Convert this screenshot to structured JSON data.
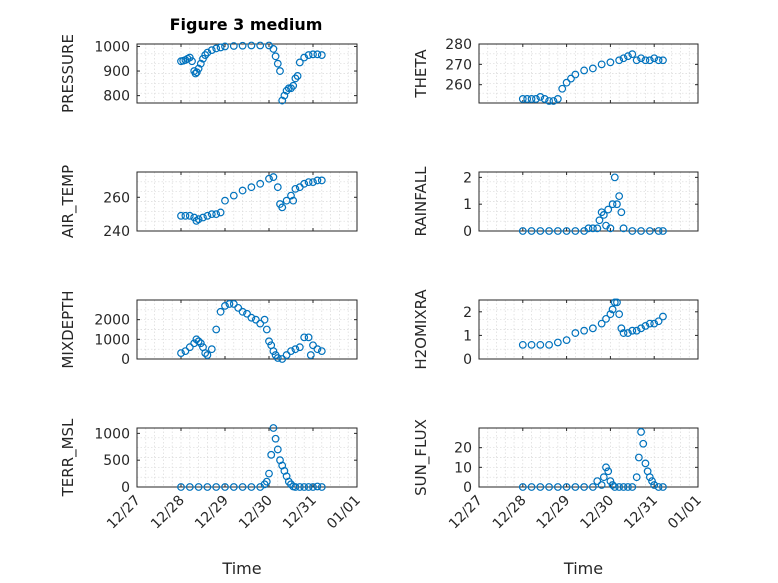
{
  "figure": {
    "title": "Figure 3 medium"
  },
  "chart_data": [
    {
      "type": "scatter",
      "title": "Figure 3 medium",
      "ylabel": "PRESSURE",
      "xlabel": "",
      "xlim": [
        0,
        5
      ],
      "ylim": [
        770,
        1010
      ],
      "grid": true,
      "yticks": [
        800,
        900,
        1000
      ],
      "ytick_labels": [
        "800",
        "900",
        "1000"
      ],
      "xtick_labels": [],
      "series": [
        {
          "x": [
            1.0,
            1.05,
            1.1,
            1.15,
            1.2,
            1.25,
            1.3,
            1.33,
            1.36,
            1.4,
            1.45,
            1.5,
            1.55,
            1.6,
            1.7,
            1.8,
            1.9,
            2.0,
            2.2,
            2.4,
            2.6,
            2.8,
            3.0,
            3.1,
            3.15,
            3.2,
            3.25,
            3.3,
            3.35,
            3.4,
            3.45,
            3.5,
            3.55,
            3.6,
            3.65,
            3.7,
            3.8,
            3.9,
            4.0,
            4.1,
            4.2
          ],
          "y": [
            940,
            942,
            945,
            950,
            955,
            940,
            900,
            890,
            895,
            910,
            930,
            950,
            965,
            975,
            985,
            992,
            996,
            1000,
            1002,
            1003,
            1004,
            1004,
            1004,
            990,
            960,
            930,
            900,
            780,
            800,
            820,
            830,
            830,
            840,
            870,
            880,
            935,
            955,
            965,
            968,
            968,
            965
          ]
        }
      ]
    },
    {
      "type": "scatter",
      "ylabel": "THETA",
      "xlabel": "",
      "xlim": [
        0,
        5
      ],
      "ylim": [
        251,
        280
      ],
      "grid": true,
      "yticks": [
        260,
        270,
        280
      ],
      "ytick_labels": [
        "260",
        "270",
        "280"
      ],
      "xtick_labels": [],
      "series": [
        {
          "x": [
            1.0,
            1.1,
            1.2,
            1.3,
            1.4,
            1.5,
            1.6,
            1.7,
            1.8,
            1.9,
            2.0,
            2.1,
            2.2,
            2.4,
            2.6,
            2.8,
            3.0,
            3.2,
            3.3,
            3.4,
            3.5,
            3.6,
            3.7,
            3.8,
            3.9,
            4.0,
            4.1,
            4.2
          ],
          "y": [
            253,
            253,
            253,
            253,
            254,
            253,
            252,
            252,
            253,
            258,
            261,
            263,
            265,
            267,
            268,
            270,
            271,
            272,
            273,
            274,
            275,
            272,
            273,
            272,
            272,
            273,
            272,
            272
          ]
        }
      ]
    },
    {
      "type": "scatter",
      "ylabel": "AIR_TEMP",
      "xlabel": "",
      "xlim": [
        0,
        5
      ],
      "ylim": [
        240,
        275
      ],
      "grid": true,
      "yticks": [
        240,
        260
      ],
      "ytick_labels": [
        "240",
        "260"
      ],
      "xtick_labels": [],
      "series": [
        {
          "x": [
            1.0,
            1.1,
            1.2,
            1.3,
            1.35,
            1.4,
            1.5,
            1.6,
            1.7,
            1.8,
            1.9,
            2.0,
            2.2,
            2.4,
            2.6,
            2.8,
            3.0,
            3.1,
            3.2,
            3.25,
            3.3,
            3.4,
            3.5,
            3.55,
            3.6,
            3.7,
            3.8,
            3.9,
            4.0,
            4.1,
            4.2
          ],
          "y": [
            249,
            249,
            249,
            248,
            246,
            247,
            248,
            249,
            250,
            250,
            251,
            258,
            261,
            264,
            266,
            268,
            271,
            272,
            266,
            256,
            254,
            258,
            261,
            258,
            265,
            266,
            268,
            269,
            269,
            270,
            270
          ]
        }
      ]
    },
    {
      "type": "scatter",
      "ylabel": "RAINFALL",
      "xlabel": "",
      "xlim": [
        0,
        5
      ],
      "ylim": [
        0,
        2.2
      ],
      "grid": true,
      "yticks": [
        0,
        1,
        2
      ],
      "ytick_labels": [
        "0",
        "1",
        "2"
      ],
      "xtick_labels": [],
      "series": [
        {
          "x": [
            1.0,
            1.2,
            1.4,
            1.6,
            1.8,
            2.0,
            2.2,
            2.4,
            2.5,
            2.6,
            2.7,
            2.75,
            2.8,
            2.85,
            2.9,
            2.95,
            3.0,
            3.05,
            3.1,
            3.15,
            3.2,
            3.25,
            3.3,
            3.5,
            3.7,
            3.9,
            4.1,
            4.2
          ],
          "y": [
            0,
            0,
            0,
            0,
            0,
            0,
            0,
            0,
            0.1,
            0.1,
            0.1,
            0.4,
            0.7,
            0.6,
            0.2,
            0.8,
            0.1,
            1.0,
            2.0,
            1.0,
            1.3,
            0.7,
            0.1,
            0,
            0,
            0,
            0,
            0
          ]
        }
      ]
    },
    {
      "type": "scatter",
      "ylabel": "MIXDEPTH",
      "xlabel": "",
      "xlim": [
        0,
        5
      ],
      "ylim": [
        0,
        3000
      ],
      "grid": true,
      "yticks": [
        0,
        1000,
        2000
      ],
      "ytick_labels": [
        "0",
        "1000",
        "2000"
      ],
      "xtick_labels": [],
      "series": [
        {
          "x": [
            1.0,
            1.1,
            1.2,
            1.3,
            1.35,
            1.4,
            1.45,
            1.5,
            1.55,
            1.6,
            1.7,
            1.8,
            1.9,
            2.0,
            2.1,
            2.2,
            2.3,
            2.4,
            2.5,
            2.6,
            2.7,
            2.8,
            2.9,
            2.95,
            3.0,
            3.05,
            3.1,
            3.15,
            3.2,
            3.3,
            3.4,
            3.5,
            3.6,
            3.7,
            3.8,
            3.9,
            3.95,
            4.0,
            4.1,
            4.2
          ],
          "y": [
            300,
            400,
            600,
            800,
            1000,
            900,
            800,
            600,
            300,
            200,
            500,
            1500,
            2400,
            2700,
            2800,
            2800,
            2600,
            2400,
            2300,
            2100,
            2000,
            1800,
            2000,
            1500,
            900,
            700,
            400,
            200,
            50,
            0,
            200,
            400,
            500,
            600,
            1100,
            1100,
            200,
            700,
            500,
            400
          ]
        }
      ]
    },
    {
      "type": "scatter",
      "ylabel": "H2OMIXRA",
      "xlabel": "",
      "xlim": [
        0,
        5
      ],
      "ylim": [
        0,
        2.5
      ],
      "grid": true,
      "yticks": [
        0,
        1,
        2
      ],
      "ytick_labels": [
        "0",
        "1",
        "2"
      ],
      "xtick_labels": [],
      "series": [
        {
          "x": [
            1.0,
            1.2,
            1.4,
            1.6,
            1.8,
            2.0,
            2.2,
            2.4,
            2.6,
            2.8,
            2.9,
            3.0,
            3.05,
            3.1,
            3.15,
            3.2,
            3.25,
            3.3,
            3.4,
            3.5,
            3.6,
            3.7,
            3.8,
            3.9,
            4.0,
            4.1,
            4.2
          ],
          "y": [
            0.6,
            0.6,
            0.6,
            0.6,
            0.7,
            0.8,
            1.1,
            1.2,
            1.3,
            1.5,
            1.7,
            1.9,
            2.1,
            2.4,
            2.4,
            1.9,
            1.3,
            1.1,
            1.1,
            1.2,
            1.2,
            1.3,
            1.4,
            1.5,
            1.5,
            1.6,
            1.8
          ]
        }
      ]
    },
    {
      "type": "scatter",
      "ylabel": "TERR_MSL",
      "xlabel": "Time",
      "xlim": [
        0,
        5
      ],
      "ylim": [
        0,
        1100
      ],
      "grid": true,
      "yticks": [
        0,
        500,
        1000
      ],
      "ytick_labels": [
        "0",
        "500",
        "1000"
      ],
      "xtick_labels": [
        "12/27",
        "12/28",
        "12/29",
        "12/30",
        "12/31",
        "01/01"
      ],
      "series": [
        {
          "x": [
            1.0,
            1.2,
            1.4,
            1.6,
            1.8,
            2.0,
            2.2,
            2.4,
            2.6,
            2.8,
            2.9,
            2.95,
            3.0,
            3.05,
            3.1,
            3.15,
            3.2,
            3.25,
            3.3,
            3.35,
            3.4,
            3.45,
            3.5,
            3.55,
            3.6,
            3.7,
            3.8,
            3.9,
            4.0,
            4.1,
            4.2
          ],
          "y": [
            0,
            0,
            0,
            0,
            0,
            0,
            0,
            0,
            0,
            0,
            50,
            100,
            250,
            600,
            1100,
            900,
            700,
            500,
            400,
            300,
            200,
            100,
            50,
            10,
            0,
            0,
            0,
            0,
            0,
            10,
            0
          ]
        }
      ]
    },
    {
      "type": "scatter",
      "ylabel": "SUN_FLUX",
      "xlabel": "Time",
      "xlim": [
        0,
        5
      ],
      "ylim": [
        0,
        30
      ],
      "grid": true,
      "yticks": [
        0,
        10,
        20
      ],
      "ytick_labels": [
        "0",
        "10",
        "20"
      ],
      "xtick_labels": [
        "12/27",
        "12/28",
        "12/29",
        "12/30",
        "12/31",
        "01/01"
      ],
      "series": [
        {
          "x": [
            1.0,
            1.2,
            1.4,
            1.6,
            1.8,
            2.0,
            2.2,
            2.4,
            2.6,
            2.7,
            2.8,
            2.85,
            2.9,
            2.95,
            3.0,
            3.05,
            3.1,
            3.2,
            3.3,
            3.4,
            3.5,
            3.6,
            3.65,
            3.7,
            3.75,
            3.8,
            3.85,
            3.9,
            3.95,
            4.0,
            4.1,
            4.2
          ],
          "y": [
            0,
            0,
            0,
            0,
            0,
            0,
            0,
            0,
            0,
            3,
            1,
            5,
            10,
            8,
            3,
            1,
            0,
            0,
            0,
            0,
            0,
            5,
            15,
            28,
            22,
            12,
            8,
            5,
            3,
            1,
            0,
            0
          ]
        }
      ]
    }
  ]
}
